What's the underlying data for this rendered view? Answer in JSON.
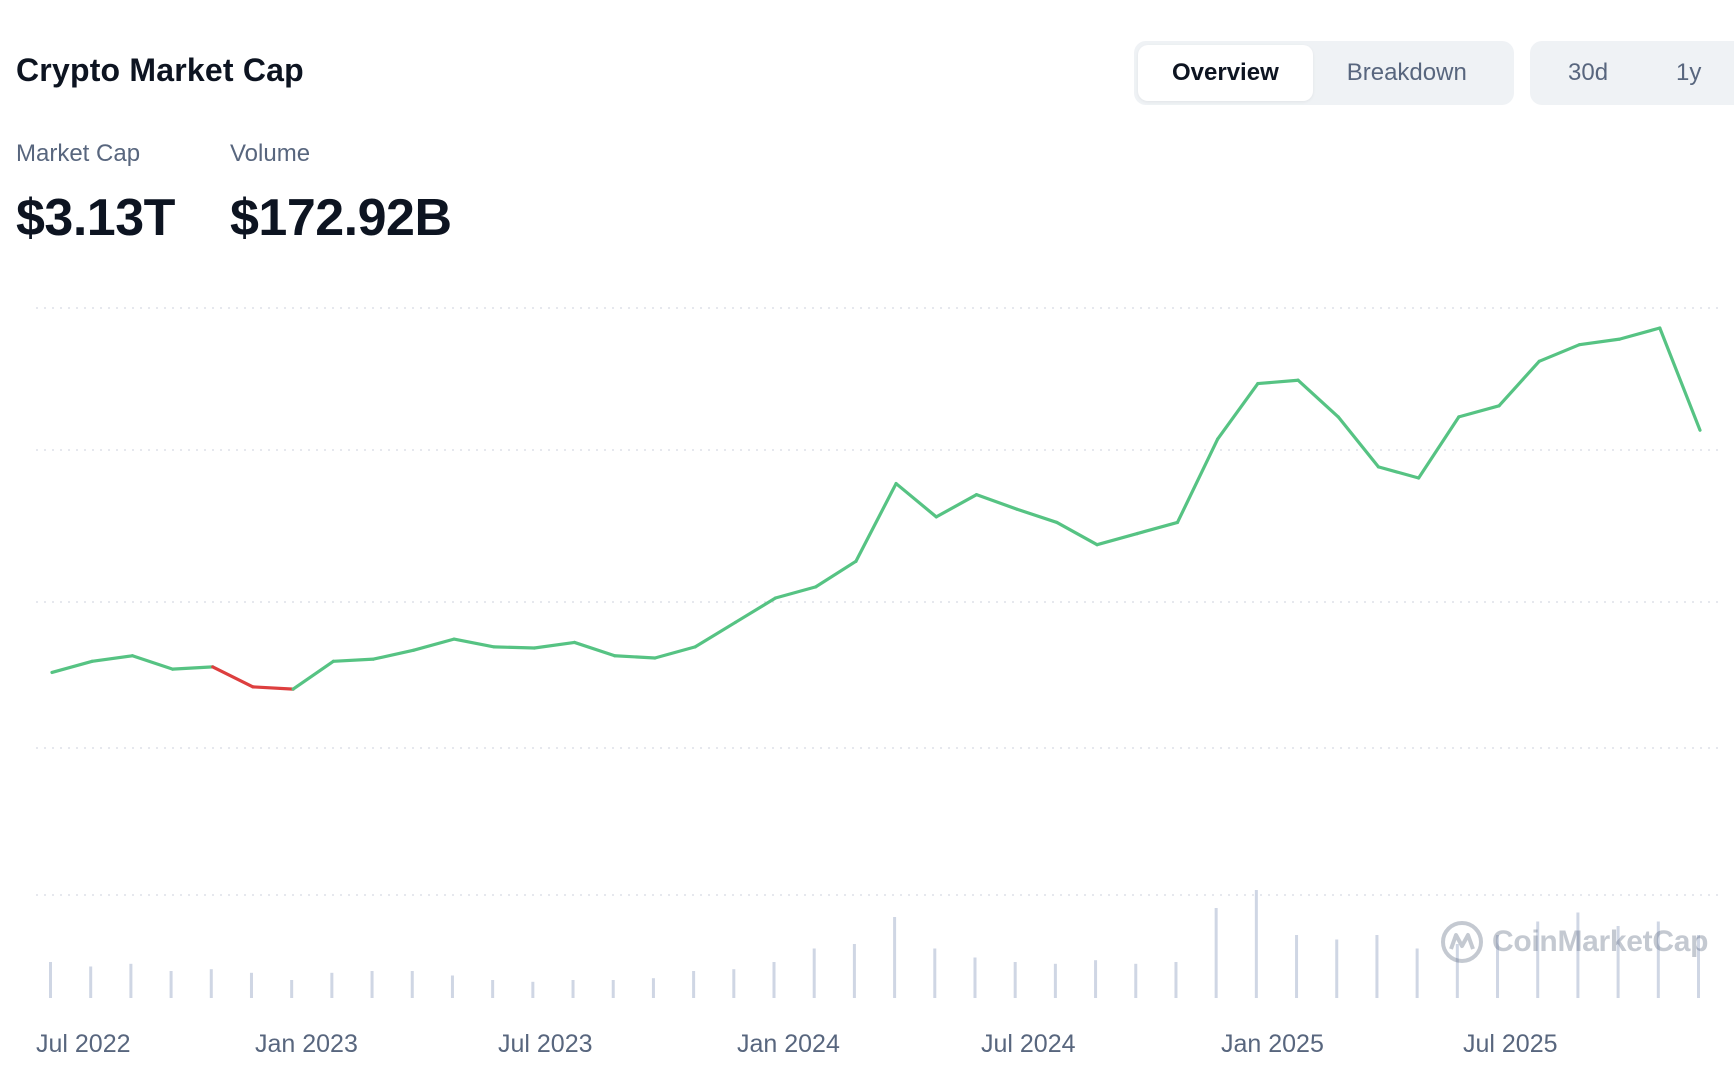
{
  "header": {
    "title": "Crypto Market Cap",
    "tabs": [
      {
        "label": "Overview",
        "active": true
      },
      {
        "label": "Breakdown",
        "active": false
      }
    ],
    "ranges": [
      {
        "label": "30d",
        "active": false
      },
      {
        "label": "1y",
        "active": false
      }
    ]
  },
  "stats": {
    "market_cap": {
      "label": "Market Cap",
      "value": "$3.13T"
    },
    "volume": {
      "label": "Volume",
      "value": "$172.92B"
    }
  },
  "watermark": {
    "text": "CoinMarketCap",
    "icon": "coinmarketcap-logo-icon"
  },
  "colors": {
    "up": "#56c383",
    "down": "#dd3f3f",
    "volume": "#cfd6e4",
    "grid": "#d6dbe3"
  },
  "chart_data": {
    "type": "line",
    "x": [
      "2022-06",
      "2022-07",
      "2022-08",
      "2022-09",
      "2022-10",
      "2022-11",
      "2022-12",
      "2023-01",
      "2023-02",
      "2023-03",
      "2023-04",
      "2023-05",
      "2023-06",
      "2023-07",
      "2023-08",
      "2023-09",
      "2023-10",
      "2023-11",
      "2023-12",
      "2024-01",
      "2024-02",
      "2024-03",
      "2024-04",
      "2024-05",
      "2024-06",
      "2024-07",
      "2024-08",
      "2024-09",
      "2024-10",
      "2024-11",
      "2024-12",
      "2025-01",
      "2025-02",
      "2025-03",
      "2025-04",
      "2025-05",
      "2025-06",
      "2025-07",
      "2025-08",
      "2025-09",
      "2025-10",
      "2025-11"
    ],
    "y": [
      0.95,
      1.05,
      1.1,
      0.98,
      1.0,
      0.82,
      0.8,
      1.05,
      1.07,
      1.15,
      1.25,
      1.18,
      1.17,
      1.22,
      1.1,
      1.08,
      1.18,
      1.4,
      1.62,
      1.72,
      1.95,
      2.65,
      2.35,
      2.55,
      2.42,
      2.3,
      2.1,
      2.2,
      2.3,
      3.05,
      3.55,
      3.58,
      3.25,
      2.8,
      2.7,
      3.25,
      3.35,
      3.75,
      3.9,
      3.95,
      4.05,
      3.13
    ],
    "segment_colors": [
      "up",
      "up",
      "up",
      "up",
      "down",
      "down",
      "up",
      "up",
      "up",
      "up",
      "up",
      "up",
      "up",
      "up",
      "up",
      "up",
      "up",
      "up",
      "up",
      "up",
      "up",
      "up",
      "up",
      "up",
      "up",
      "up",
      "up",
      "up",
      "up",
      "up",
      "up",
      "up",
      "up",
      "up",
      "up",
      "up",
      "up",
      "up",
      "up",
      "up",
      "up"
    ],
    "volume_relative": [
      0.4,
      0.35,
      0.38,
      0.3,
      0.32,
      0.28,
      0.2,
      0.28,
      0.3,
      0.3,
      0.25,
      0.2,
      0.18,
      0.2,
      0.2,
      0.22,
      0.3,
      0.32,
      0.4,
      0.55,
      0.6,
      0.9,
      0.55,
      0.45,
      0.4,
      0.38,
      0.42,
      0.38,
      0.4,
      1.0,
      1.2,
      0.7,
      0.65,
      0.7,
      0.55,
      0.6,
      0.7,
      0.85,
      0.95,
      0.8,
      0.85,
      0.7
    ],
    "x_tick_labels": [
      "Jul 2022",
      "Jan 2023",
      "Jul 2023",
      "Jan 2024",
      "Jul 2024",
      "Jan 2025",
      "Jul 2025"
    ],
    "y_gridlines": 5,
    "grid": true,
    "legend": "none"
  }
}
